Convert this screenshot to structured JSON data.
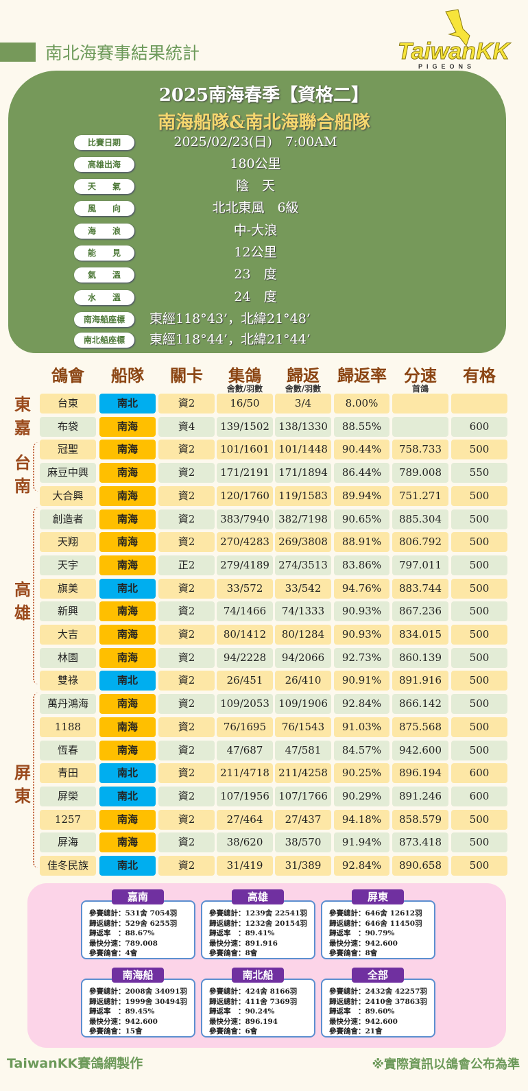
{
  "header": {
    "title": "南北海賽事結果統計",
    "logo_text": "TaiwanKK",
    "logo_sub": "PIGEONS"
  },
  "race": {
    "title": "2025南海春季【資格二】",
    "subtitle": "南海船隊&南北海聯合船隊",
    "info": [
      {
        "label": "比賽日期",
        "value": "2025/02/23(日)　7:00AM"
      },
      {
        "label": "高雄出海",
        "value": "180公里"
      },
      {
        "label": "天　　氣",
        "value": "陰　天"
      },
      {
        "label": "風　　向",
        "value": "北北東風　6級"
      },
      {
        "label": "海　　浪",
        "value": "中-大浪"
      },
      {
        "label": "能　　見",
        "value": "12公里"
      },
      {
        "label": "氣　　溫",
        "value": "23　度"
      },
      {
        "label": "水　　溫",
        "value": "24　度"
      },
      {
        "label": "南海船座標",
        "value": "東經118°43’，北緯21°48’"
      },
      {
        "label": "南北船座標",
        "value": "東經118°44’，北緯21°44’"
      }
    ]
  },
  "table": {
    "headers": [
      "鴿會",
      "船隊",
      "關卡",
      "集鴿",
      "歸返",
      "歸返率",
      "分速",
      "有格"
    ],
    "subheaders": {
      "collect": "舍數/羽數",
      "return": "舍數/羽數",
      "speed": "首鴿"
    },
    "regions": [
      "東嘉",
      "台南",
      "高雄",
      "屏東"
    ],
    "colors": {
      "row_a": "#fde7a6",
      "row_b": "#e3ecd6",
      "team_nanbei": "#00aeef",
      "team_nanhai": "#ffbf00"
    },
    "rows": [
      [
        "台東",
        "南北",
        "資2",
        "16/50",
        "3/4",
        "8.00%",
        "",
        ""
      ],
      [
        "布袋",
        "南海",
        "資4",
        "139/1502",
        "138/1330",
        "88.55%",
        "",
        "600"
      ],
      [
        "冠聖",
        "南海",
        "資2",
        "101/1601",
        "101/1448",
        "90.44%",
        "758.733",
        "500"
      ],
      [
        "麻豆中興",
        "南海",
        "資2",
        "171/2191",
        "171/1894",
        "86.44%",
        "789.008",
        "550"
      ],
      [
        "大合興",
        "南海",
        "資2",
        "120/1760",
        "119/1583",
        "89.94%",
        "751.271",
        "500"
      ],
      [
        "創造者",
        "南海",
        "資2",
        "383/7940",
        "382/7198",
        "90.65%",
        "885.304",
        "500"
      ],
      [
        "天翔",
        "南海",
        "資2",
        "270/4283",
        "269/3808",
        "88.91%",
        "806.792",
        "500"
      ],
      [
        "天宇",
        "南海",
        "正2",
        "279/4189",
        "274/3513",
        "83.86%",
        "797.011",
        "500"
      ],
      [
        "旗美",
        "南北",
        "資2",
        "33/572",
        "33/542",
        "94.76%",
        "883.744",
        "500"
      ],
      [
        "新興",
        "南海",
        "資2",
        "74/1466",
        "74/1333",
        "90.93%",
        "867.236",
        "500"
      ],
      [
        "大吉",
        "南海",
        "資2",
        "80/1412",
        "80/1284",
        "90.93%",
        "834.015",
        "500"
      ],
      [
        "林園",
        "南海",
        "資2",
        "94/2228",
        "94/2066",
        "92.73%",
        "860.139",
        "500"
      ],
      [
        "雙祿",
        "南北",
        "資2",
        "26/451",
        "26/410",
        "90.91%",
        "891.916",
        "500"
      ],
      [
        "萬丹鴻海",
        "南海",
        "資2",
        "109/2053",
        "109/1906",
        "92.84%",
        "866.142",
        "500"
      ],
      [
        "1188",
        "南海",
        "資2",
        "76/1695",
        "76/1543",
        "91.03%",
        "875.568",
        "500"
      ],
      [
        "恆春",
        "南海",
        "資2",
        "47/687",
        "47/581",
        "84.57%",
        "942.600",
        "500"
      ],
      [
        "青田",
        "南北",
        "資2",
        "211/4718",
        "211/4258",
        "90.25%",
        "896.194",
        "600"
      ],
      [
        "屏榮",
        "南北",
        "資2",
        "107/1956",
        "107/1766",
        "90.29%",
        "891.246",
        "600"
      ],
      [
        "1257",
        "南海",
        "資2",
        "27/464",
        "27/437",
        "94.18%",
        "858.579",
        "500"
      ],
      [
        "屏海",
        "南海",
        "資2",
        "38/620",
        "38/570",
        "91.94%",
        "873.418",
        "500"
      ],
      [
        "佳冬民族",
        "南北",
        "資2",
        "31/419",
        "31/389",
        "92.84%",
        "890.658",
        "500"
      ]
    ]
  },
  "summary": [
    {
      "title": "嘉南",
      "lines": [
        "參賽總計：531舍 7054羽",
        "歸返總計：529舍 6255羽",
        "歸返率　：88.67%",
        "最快分速：789.008",
        "參賽鴿會：4會"
      ]
    },
    {
      "title": "高雄",
      "lines": [
        "參賽總計：1239舍 22541羽",
        "歸返總計：1232舍 20154羽",
        "歸返率　：89.41%",
        "最快分速：891.916",
        "參賽鴿會：8會"
      ]
    },
    {
      "title": "屏東",
      "lines": [
        "參賽總計：646舍 12612羽",
        "歸返總計：646舍 11450羽",
        "歸返率　：90.79%",
        "最快分速：942.600",
        "參賽鴿會：8會"
      ]
    },
    {
      "title": "南海船",
      "lines": [
        "參賽總計：2008舍 34091羽",
        "歸返總計：1999舍 30494羽",
        "歸返率　：89.45%",
        "最快分速：942.600",
        "參賽鴿會：15會"
      ]
    },
    {
      "title": "南北船",
      "lines": [
        "參賽總計：424舍 8166羽",
        "歸返總計：411舍 7369羽",
        "歸返率　：90.24%",
        "最快分速：896.194",
        "參賽鴿會：6會"
      ]
    },
    {
      "title": "全部",
      "lines": [
        "參賽總計：2432舍 42257羽",
        "歸返總計：2410舍 37863羽",
        "歸返率　：89.60%",
        "最快分速：942.600",
        "參賽鴿會：21會"
      ]
    }
  ],
  "footer": {
    "left": "TaiwanKK賽鴿網製作",
    "right": "※實際資訊以鴿會公布為準"
  }
}
